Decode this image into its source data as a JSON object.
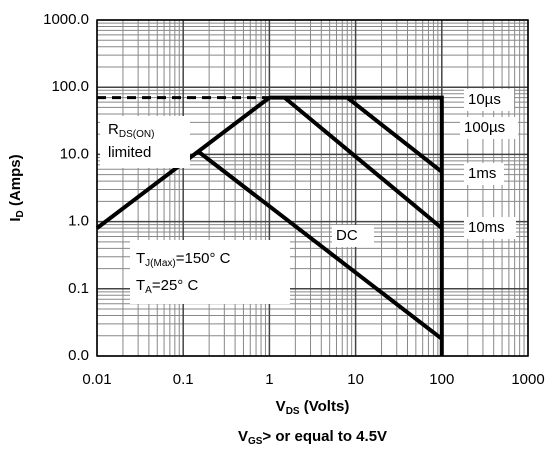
{
  "chart_data": {
    "type": "line",
    "log_x": true,
    "log_y": true,
    "grid": true,
    "xlim": [
      0.01,
      1000
    ],
    "ylim": [
      0.01,
      1000
    ],
    "xticks": [
      0.01,
      0.1,
      1,
      10,
      100,
      1000
    ],
    "yticks": [
      {
        "value": 0.01,
        "label": "0.0"
      },
      {
        "value": 0.1,
        "label": "0.1"
      },
      {
        "value": 1,
        "label": "1.0"
      },
      {
        "value": 10,
        "label": "10.0"
      },
      {
        "value": 100,
        "label": "100.0"
      },
      {
        "value": 1000,
        "label": "1000.0"
      }
    ],
    "y_label": {
      "main": "I",
      "sub": "D",
      "rest": " (Amps)"
    },
    "x_label": {
      "main": "V",
      "sub": "DS",
      "rest": " (Volts)"
    },
    "footer": {
      "main": "V",
      "sub": "GS",
      "rest": "> or equal to 4.5V"
    },
    "series": [
      {
        "color": "#000000",
        "style": "dashed",
        "x": [
          0.01,
          1
        ],
        "values": [
          70,
          70
        ]
      },
      {
        "color": "#000000",
        "style": "solid",
        "x": [
          0.01,
          1
        ],
        "values": [
          0.8,
          70
        ]
      },
      {
        "color": "#000000",
        "style": "solid",
        "x": [
          1,
          100,
          100
        ],
        "values": [
          70,
          70,
          0.01
        ]
      },
      {
        "color": "#000000",
        "style": "solid",
        "x": [
          8,
          100
        ],
        "values": [
          70,
          5.5
        ]
      },
      {
        "color": "#000000",
        "style": "solid",
        "x": [
          1.5,
          100
        ],
        "values": [
          70,
          0.8
        ]
      },
      {
        "color": "#000000",
        "style": "solid",
        "x": [
          0.15,
          100
        ],
        "values": [
          11,
          0.018
        ]
      }
    ],
    "annotations": [
      "10µs",
      "100µs",
      "1ms",
      "10ms",
      "DC"
    ],
    "rds_note": {
      "main": "R",
      "sub": "DS(ON)",
      "line2": "limited"
    },
    "conditions": [
      {
        "main": "T",
        "sub": "J(Max)",
        "rest": "=150° C"
      },
      {
        "main": "T",
        "sub": "A",
        "rest": "=25° C"
      }
    ]
  }
}
